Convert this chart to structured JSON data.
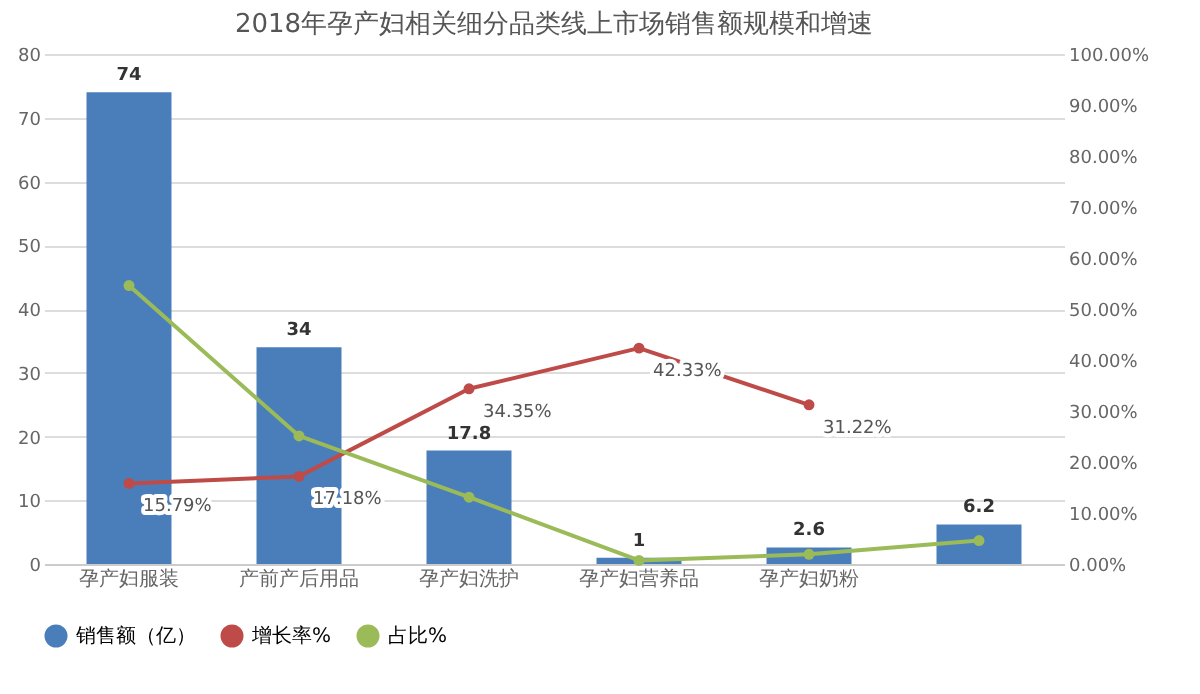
{
  "chart_data": {
    "type": "bar",
    "title": "2018年孕产妇相关细分品类线上市场销售额规模和增速",
    "categories": [
      "孕产妇服装",
      "产前产后用品",
      "孕产妇洗护",
      "孕产妇营养品",
      "孕产妇奶粉",
      null
    ],
    "series": [
      {
        "name": "销售额（亿）",
        "color": "#4a7ebb",
        "values": [
          74,
          34,
          17.8,
          1,
          2.6,
          6.2
        ],
        "data_labels": true
      },
      {
        "name": "增长率%",
        "type": "line",
        "axis": "y2",
        "color": "#be4b48",
        "values": [
          15.79,
          17.18,
          34.35,
          42.33,
          31.22,
          null
        ],
        "value_labels": [
          "15.79%",
          "17.18%",
          "34.35%",
          "42.33%",
          "31.22%",
          null
        ]
      },
      {
        "name": "占比%",
        "type": "line",
        "axis": "y2",
        "color": "#9bbb59",
        "values": [
          54.6,
          25.1,
          13.1,
          0.7,
          1.9,
          4.6
        ]
      }
    ],
    "ylim": [
      0,
      80
    ],
    "yticks": [
      0,
      10,
      20,
      30,
      40,
      50,
      60,
      70,
      80
    ],
    "y2lim": [
      0,
      100
    ],
    "y2ticks": [
      {
        "value": 0,
        "label": "0.00%"
      },
      {
        "value": 10,
        "label": "10.00%"
      },
      {
        "value": 20,
        "label": "20.00%"
      },
      {
        "value": 30,
        "label": "30.00%"
      },
      {
        "value": 40,
        "label": "40.00%"
      },
      {
        "value": 50,
        "label": "50.00%"
      },
      {
        "value": 60,
        "label": "60.00%"
      },
      {
        "value": 70,
        "label": "70.00%"
      },
      {
        "value": 80,
        "label": "80.00%"
      },
      {
        "value": 90,
        "label": "90.00%"
      },
      {
        "value": 100,
        "label": "100.00%"
      }
    ],
    "grid": "y",
    "legend": "bottom",
    "marker": "circle",
    "line_style": "solid"
  }
}
